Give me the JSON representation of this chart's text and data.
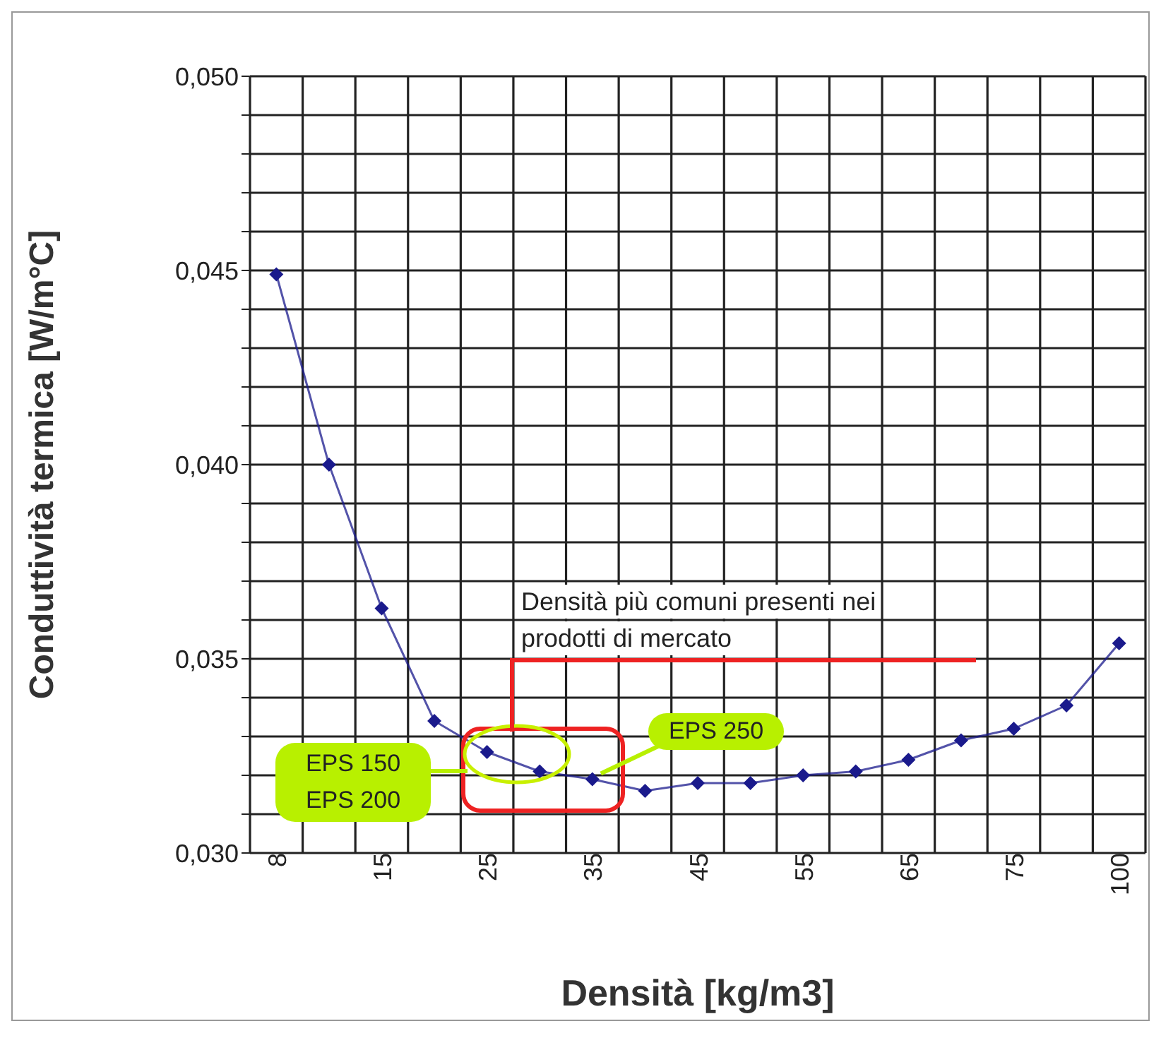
{
  "chart_data": {
    "type": "line",
    "xlabel": "Densità [kg/m3]",
    "ylabel": "Conduttività termica [W/m°C]",
    "categories": [
      "8",
      null,
      "15",
      null,
      "25",
      null,
      "35",
      null,
      "45",
      null,
      "55",
      null,
      "65",
      null,
      "75",
      null,
      "100"
    ],
    "series": [
      {
        "color": "#1a1a8c",
        "values": [
          0.0449,
          0.04,
          0.0363,
          0.0334,
          0.0326,
          0.0321,
          0.0319,
          0.0316,
          0.0318,
          0.0318,
          0.032,
          0.0321,
          0.0324,
          0.0329,
          0.0332,
          0.0338,
          0.0354
        ]
      }
    ],
    "ylim": [
      0.03,
      0.05
    ],
    "yticks": [
      {
        "value": 0.03,
        "label": "0,030"
      },
      {
        "value": 0.031,
        "label": null
      },
      {
        "value": 0.032,
        "label": null
      },
      {
        "value": 0.033,
        "label": null
      },
      {
        "value": 0.034,
        "label": null
      },
      {
        "value": 0.035,
        "label": "0,035"
      },
      {
        "value": 0.036,
        "label": null
      },
      {
        "value": 0.037,
        "label": null
      },
      {
        "value": 0.038,
        "label": null
      },
      {
        "value": 0.039,
        "label": null
      },
      {
        "value": 0.04,
        "label": "0,040"
      },
      {
        "value": 0.041,
        "label": null
      },
      {
        "value": 0.042,
        "label": null
      },
      {
        "value": 0.043,
        "label": null
      },
      {
        "value": 0.044,
        "label": null
      },
      {
        "value": 0.045,
        "label": "0,045"
      },
      {
        "value": 0.046,
        "label": null
      },
      {
        "value": 0.047,
        "label": null
      },
      {
        "value": 0.048,
        "label": null
      },
      {
        "value": 0.049,
        "label": null
      },
      {
        "value": 0.05,
        "label": "0,050"
      }
    ],
    "grid": true,
    "legend": false,
    "marker": "diamond",
    "line_style": "solid",
    "annotations": [
      "Densità più comuni presenti nei prodotti di mercato",
      "EPS 150",
      "EPS 200",
      {
        "text": "EPS 250",
        "x": "35",
        "y": 0.0319
      }
    ]
  }
}
